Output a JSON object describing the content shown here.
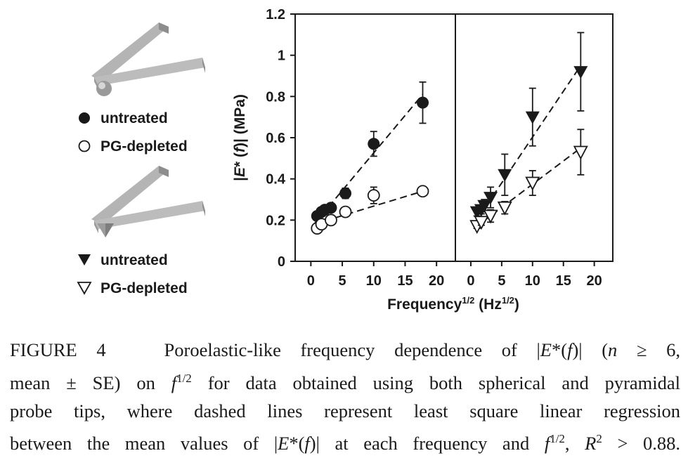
{
  "legend": {
    "sphere_untreated": "untreated",
    "sphere_depleted": "PG-depleted",
    "pyramid_untreated": "untreated",
    "pyramid_depleted": "PG-depleted"
  },
  "caption": {
    "fig_label": "FIGURE 4",
    "l1_text": "Poroelastic-like frequency dependence of |",
    "l1_E": "E",
    "l1_star": "*(",
    "l1_f": "f",
    "l1_close": ")| (",
    "l1_n": "n",
    "l1_rest": " ≥ 6,",
    "l2_a": "mean ± SE) on ",
    "l2_f": "f",
    "l2_sup": "1/2",
    "l2_b": " for data obtained using both spherical and pyramidal",
    "l3": "probe tips, where dashed lines represent least square linear regression",
    "l4_a": "between the mean values of |",
    "l4_E": "E",
    "l4_star": "*(",
    "l4_f": "f",
    "l4_b": ")| at each frequency and ",
    "l4_f2": "f",
    "l4_sup": "1/2",
    "l4_c": ", ",
    "l4_R": "R",
    "l4_sup2": "2",
    "l4_d": " > 0.88."
  },
  "chart_data": [
    {
      "type": "scatter",
      "panel": "spherical",
      "xlabel": "Frequency1/2 (Hz1/2)",
      "ylabel": "|E* (f)| (MPa)",
      "xlim": [
        -2.5,
        23
      ],
      "ylim": [
        0,
        1.2
      ],
      "xticks": [
        0,
        5,
        10,
        15,
        20
      ],
      "yticks": [
        0,
        0.2,
        0.4,
        0.6,
        0.8,
        1,
        1.2
      ],
      "ytick_labels": [
        "0",
        "0.2",
        "0.4",
        "0.6",
        "0.8",
        "1",
        "1.2"
      ],
      "series": [
        {
          "name": "untreated",
          "marker": "filled-circle",
          "x": [
            1,
            1.7,
            2.2,
            3.2,
            5.5,
            10,
            17.8
          ],
          "y": [
            0.22,
            0.24,
            0.25,
            0.26,
            0.33,
            0.57,
            0.77
          ],
          "err": [
            0.01,
            0.015,
            0.015,
            0.02,
            0.025,
            0.06,
            0.1
          ],
          "fit": [
            0.18,
            0.81
          ]
        },
        {
          "name": "PG-depleted",
          "marker": "open-circle",
          "x": [
            1,
            1.7,
            3.2,
            5.5,
            10,
            17.8
          ],
          "y": [
            0.16,
            0.18,
            0.2,
            0.24,
            0.32,
            0.34
          ],
          "err": [
            0.01,
            0.01,
            0.015,
            0.02,
            0.04,
            0.015
          ],
          "fit": [
            0.18,
            0.34
          ]
        }
      ]
    },
    {
      "type": "scatter",
      "panel": "pyramidal",
      "xlim": [
        -2.5,
        23
      ],
      "ylim": [
        0,
        1.2
      ],
      "xticks": [
        0,
        5,
        10,
        15,
        20
      ],
      "series": [
        {
          "name": "untreated",
          "marker": "filled-triangle-down",
          "x": [
            1,
            1.7,
            2.2,
            3.2,
            5.5,
            10,
            17.8
          ],
          "y": [
            0.24,
            0.25,
            0.27,
            0.31,
            0.42,
            0.7,
            0.92
          ],
          "err": [
            0.02,
            0.02,
            0.03,
            0.05,
            0.1,
            0.14,
            0.19
          ],
          "fit": [
            0.18,
            0.95
          ]
        },
        {
          "name": "PG-depleted",
          "marker": "open-triangle-down",
          "x": [
            1,
            1.7,
            3.2,
            5.5,
            10,
            17.8
          ],
          "y": [
            0.17,
            0.19,
            0.22,
            0.26,
            0.38,
            0.53
          ],
          "err": [
            0.01,
            0.015,
            0.03,
            0.03,
            0.06,
            0.11
          ],
          "fit": [
            0.16,
            0.55
          ]
        }
      ]
    }
  ]
}
